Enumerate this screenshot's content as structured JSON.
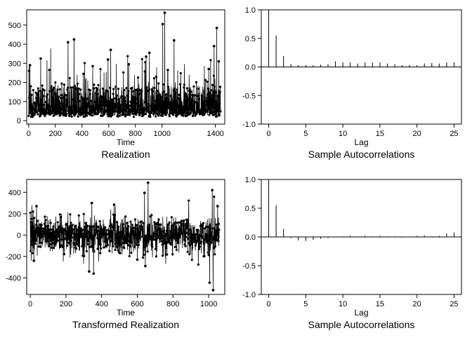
{
  "chart_data": [
    {
      "type": "line",
      "xlabel": "Time",
      "caption": "Realization",
      "xlim": [
        -15,
        1470
      ],
      "ylim": [
        -18,
        580
      ],
      "xticks": [
        0,
        200,
        400,
        600,
        800,
        1000,
        1400
      ],
      "yticks": [
        0,
        100,
        200,
        300,
        400,
        500
      ],
      "n_points": 1440,
      "series": [
        {
          "values": [
            25,
            90,
            260,
            290,
            120,
            60,
            40,
            150,
            80,
            30,
            10,
            70,
            45,
            110,
            60,
            35,
            180,
            90,
            20,
            55,
            75,
            40,
            135,
            65,
            30,
            90,
            50,
            20,
            70,
            40
          ]
        }
      ],
      "peaks": [
        {
          "x": 1020,
          "y": 565
        },
        {
          "x": 1005,
          "y": 505
        },
        {
          "x": 1410,
          "y": 485
        },
        {
          "x": 340,
          "y": 425
        },
        {
          "x": 1090,
          "y": 420
        },
        {
          "x": 295,
          "y": 410
        },
        {
          "x": 1390,
          "y": 390
        },
        {
          "x": 615,
          "y": 370
        },
        {
          "x": 905,
          "y": 355
        },
        {
          "x": 880,
          "y": 335
        },
        {
          "x": 90,
          "y": 325
        },
        {
          "x": 595,
          "y": 320
        },
        {
          "x": 1425,
          "y": 310
        },
        {
          "x": 10,
          "y": 290
        },
        {
          "x": 750,
          "y": 295
        },
        {
          "x": 480,
          "y": 285
        },
        {
          "x": 1350,
          "y": 270
        }
      ]
    },
    {
      "type": "bar",
      "xlabel": "Lag",
      "caption": "Sample Autocorrelations",
      "xlim": [
        -1,
        26
      ],
      "ylim": [
        -1.0,
        1.0
      ],
      "xticks": [
        0,
        5,
        10,
        15,
        20,
        25
      ],
      "yticks": [
        -1.0,
        -0.5,
        0.0,
        0.5,
        1.0
      ],
      "lags": [
        0,
        1,
        2,
        3,
        4,
        5,
        6,
        7,
        8,
        9,
        10,
        11,
        12,
        13,
        14,
        15,
        16,
        17,
        18,
        19,
        20,
        21,
        22,
        23,
        24,
        25
      ],
      "values": [
        1.0,
        0.55,
        0.19,
        0.05,
        0.03,
        0.03,
        0.03,
        0.04,
        0.05,
        0.1,
        0.08,
        0.08,
        0.06,
        0.08,
        0.08,
        0.08,
        0.06,
        0.05,
        0.03,
        0.03,
        0.03,
        0.06,
        0.07,
        0.06,
        0.08,
        0.08
      ]
    },
    {
      "type": "line",
      "xlabel": "Time",
      "caption": "Transformed Realization",
      "xlim": [
        -20,
        1090
      ],
      "ylim": [
        -555,
        520
      ],
      "xticks": [
        0,
        200,
        400,
        600,
        800,
        1000
      ],
      "yticks": [
        -400,
        -200,
        0,
        200,
        400
      ],
      "n_points": 1060,
      "series": [
        {
          "values": [
            210,
            -60,
            -150,
            40,
            120,
            -240,
            80,
            -20,
            150,
            280,
            -90,
            30,
            -60,
            130,
            -170,
            60,
            220,
            -40,
            -110,
            90,
            20,
            -70,
            160,
            -140,
            40,
            10,
            -30,
            110,
            -80,
            50
          ]
        }
      ],
      "peaks": [
        {
          "x": 660,
          "y": 490
        },
        {
          "x": 1020,
          "y": 420
        },
        {
          "x": 640,
          "y": 395
        },
        {
          "x": 345,
          "y": 300
        },
        {
          "x": 1050,
          "y": 270
        },
        {
          "x": 35,
          "y": 270
        },
        {
          "x": 470,
          "y": 285
        },
        {
          "x": 1025,
          "y": -515
        },
        {
          "x": 1005,
          "y": -445
        },
        {
          "x": 355,
          "y": -360
        },
        {
          "x": 330,
          "y": -340
        },
        {
          "x": 645,
          "y": -290
        },
        {
          "x": 20,
          "y": -240
        },
        {
          "x": 600,
          "y": -230
        }
      ]
    },
    {
      "type": "bar",
      "xlabel": "Lag",
      "caption": "Sample Autocorrelations",
      "xlim": [
        -1,
        26
      ],
      "ylim": [
        -1.0,
        1.0
      ],
      "xticks": [
        0,
        5,
        10,
        15,
        20,
        25
      ],
      "yticks": [
        -1.0,
        -0.5,
        0.0,
        0.5,
        1.0
      ],
      "lags": [
        0,
        1,
        2,
        3,
        4,
        5,
        6,
        7,
        8,
        9,
        10,
        11,
        12,
        13,
        14,
        15,
        16,
        17,
        18,
        19,
        20,
        21,
        22,
        23,
        24,
        25
      ],
      "values": [
        1.0,
        0.55,
        0.14,
        -0.02,
        -0.06,
        -0.07,
        -0.05,
        -0.03,
        -0.02,
        0.0,
        0.01,
        0.02,
        0.01,
        0.02,
        0.01,
        0.02,
        0.01,
        0.01,
        -0.01,
        0.0,
        0.02,
        0.03,
        0.01,
        0.02,
        0.06,
        0.08
      ]
    }
  ]
}
